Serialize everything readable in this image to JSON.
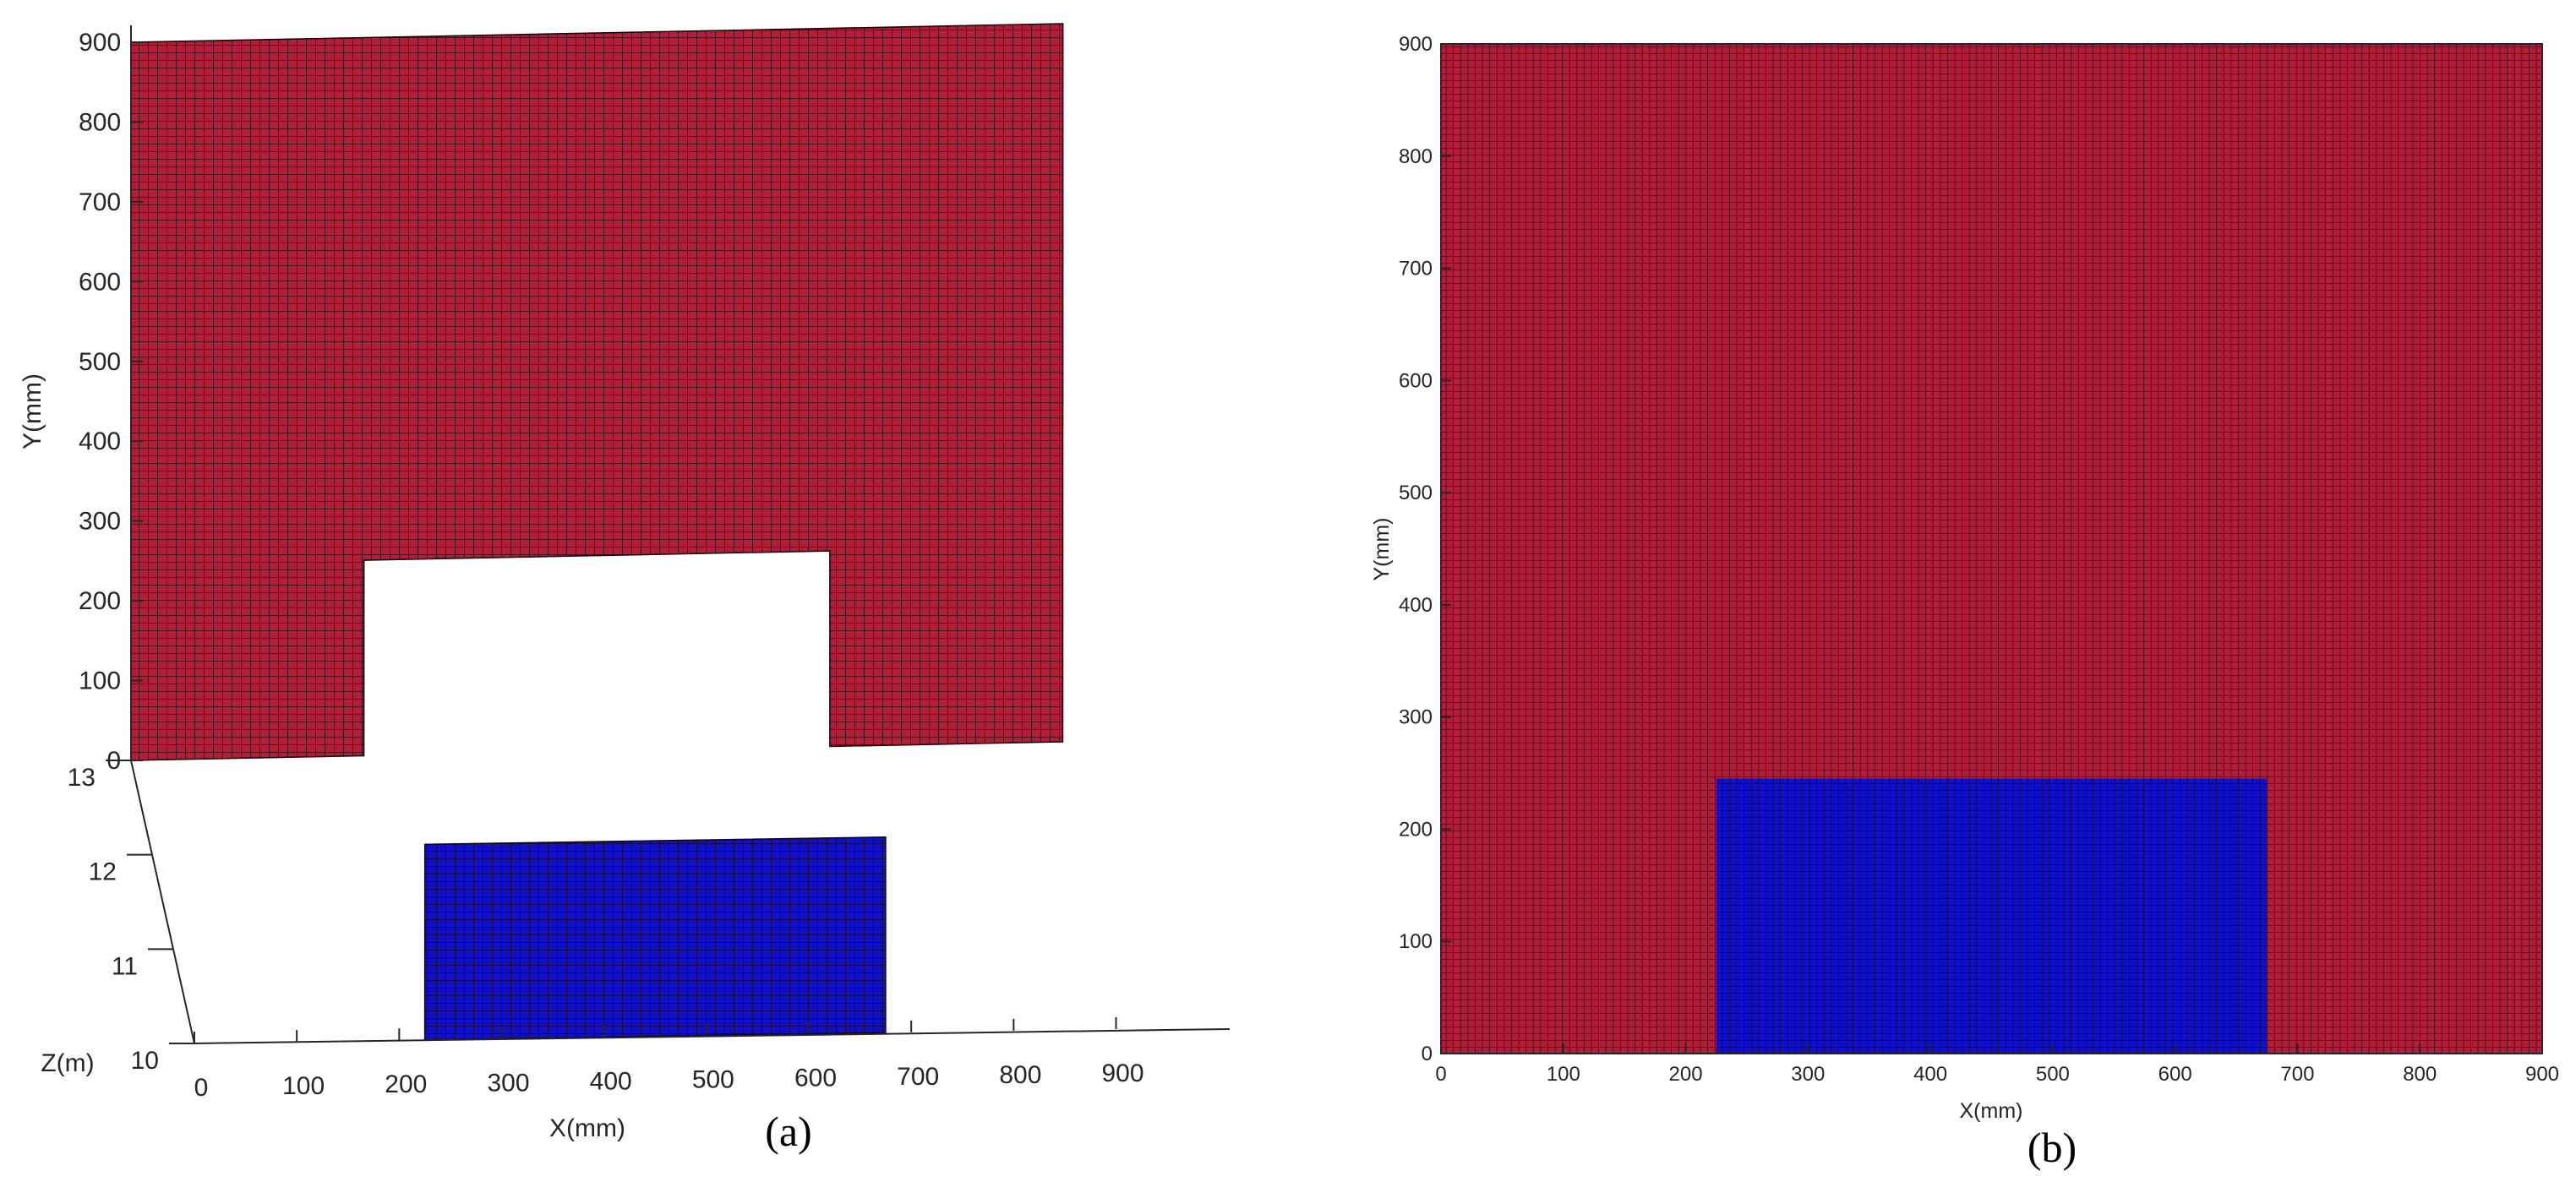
{
  "colors": {
    "red_mesh": "#b01e3a",
    "blue_mesh": "#1010c8",
    "grid_line": "#1a0508",
    "axis": "#262626"
  },
  "chart_data": [
    {
      "type": "surface3d",
      "caption": "(a)",
      "xlabel": "X(mm)",
      "ylabel": "Y(mm)",
      "zlabel": "Z(m)",
      "x_ticks": [
        0,
        100,
        200,
        300,
        400,
        500,
        600,
        700,
        800,
        900
      ],
      "y_ticks": [
        0,
        100,
        200,
        300,
        400,
        500,
        600,
        700,
        800,
        900
      ],
      "z_ticks": [
        10,
        11,
        12,
        13
      ],
      "xlim": [
        0,
        900
      ],
      "ylim": [
        0,
        900
      ],
      "zlim": [
        10,
        13
      ],
      "surfaces": [
        {
          "name": "",
          "color": "red_mesh",
          "z": 13,
          "outline": [
            [
              0,
              0
            ],
            [
              225,
              0
            ],
            [
              225,
              245
            ],
            [
              675,
              245
            ],
            [
              675,
              0
            ],
            [
              900,
              0
            ],
            [
              900,
              900
            ],
            [
              0,
              900
            ]
          ]
        },
        {
          "name": "",
          "color": "blue_mesh",
          "z": 10,
          "outline": [
            [
              225,
              0
            ],
            [
              675,
              0
            ],
            [
              675,
              245
            ],
            [
              225,
              245
            ]
          ]
        }
      ]
    },
    {
      "type": "heatmap",
      "caption": "(b)",
      "xlabel": "X(mm)",
      "ylabel": "Y(mm)",
      "x_ticks": [
        0,
        100,
        200,
        300,
        400,
        500,
        600,
        700,
        800,
        900
      ],
      "y_ticks": [
        0,
        100,
        200,
        300,
        400,
        500,
        600,
        700,
        800,
        900
      ],
      "xlim": [
        0,
        900
      ],
      "ylim": [
        0,
        900
      ],
      "grid": true,
      "regions": [
        {
          "color": "red_mesh",
          "x": [
            0,
            900
          ],
          "y": [
            0,
            900
          ]
        },
        {
          "color": "blue_mesh",
          "x": [
            225,
            675
          ],
          "y": [
            0,
            245
          ]
        }
      ]
    }
  ]
}
